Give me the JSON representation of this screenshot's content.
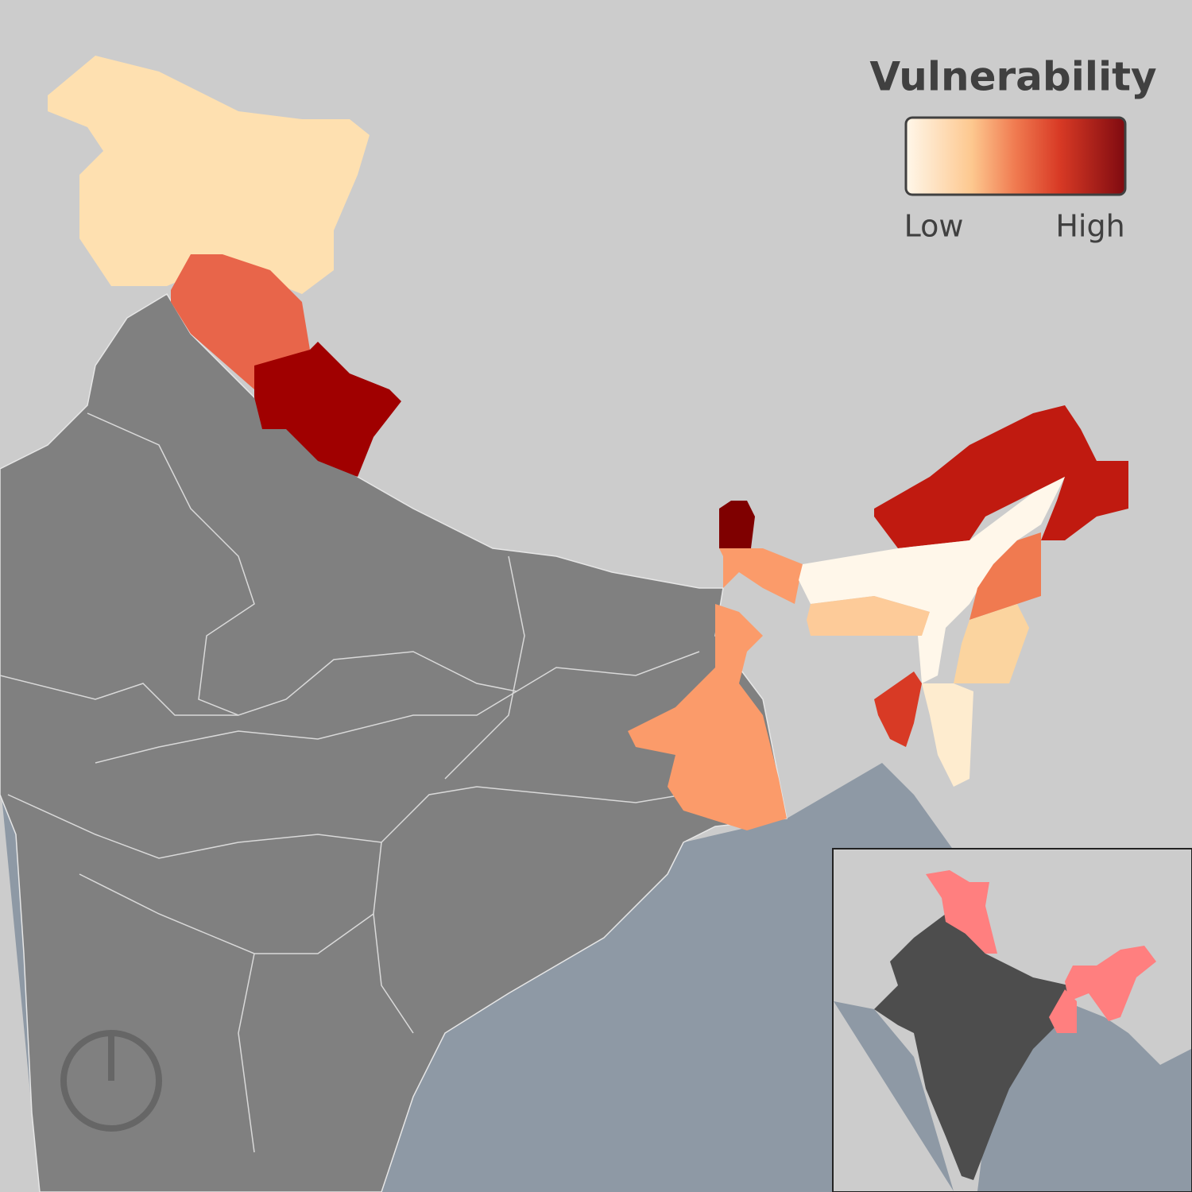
{
  "legend": {
    "title": "Vulnerability",
    "low_label": "Low",
    "high_label": "High"
  }
}
